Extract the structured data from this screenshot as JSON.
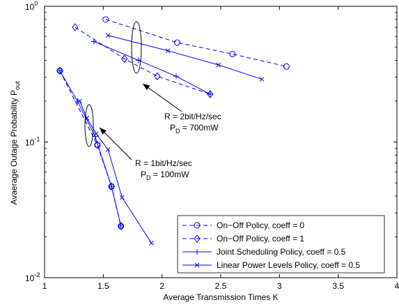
{
  "chart_data": {
    "type": "line",
    "title": "",
    "xlabel": "Average Transmission Times K",
    "ylabel": "Avaerage Outage Probability P",
    "ylabel_sub": "out",
    "xlim": [
      1,
      4
    ],
    "ylim": [
      0.01,
      1
    ],
    "yscale": "log",
    "grid": false,
    "legend_position": "bottom-right",
    "x_ticks": [
      "1",
      "1.5",
      "2",
      "2.5",
      "3",
      "3.5",
      "4"
    ],
    "x_tick_values": [
      1,
      1.5,
      2,
      2.5,
      3,
      3.5,
      4
    ],
    "y_ticks": [
      {
        "base": "10",
        "exp": "0",
        "value": 1
      },
      {
        "base": "10",
        "exp": "-1",
        "value": 0.1
      },
      {
        "base": "10",
        "exp": "-2",
        "value": 0.01
      }
    ],
    "color": "#0000ff",
    "series": [
      {
        "name": "On−Off Policy, coeff = 0",
        "line": "dashed",
        "marker": "circle",
        "group": "2bit",
        "x": [
          1.52,
          2.13,
          2.6,
          3.06
        ],
        "y": [
          0.8,
          0.54,
          0.445,
          0.36
        ]
      },
      {
        "name": "On−Off Policy, coeff = 1",
        "line": "dashed",
        "marker": "diamond",
        "group": "2bit",
        "x": [
          1.26,
          1.68,
          1.96,
          2.41
        ],
        "y": [
          0.7,
          0.41,
          0.305,
          0.225
        ]
      },
      {
        "name": "Joint Scheduling Policy, coeff = 0.5",
        "line": "solid",
        "marker": "plus",
        "group": "2bit",
        "x": [
          1.42,
          1.8,
          2.12,
          2.41
        ],
        "y": [
          0.55,
          0.4,
          0.305,
          0.225
        ]
      },
      {
        "name": "Linear Power Levels Policy, coeff = 0.5",
        "line": "solid",
        "marker": "x",
        "group": "2bit",
        "x": [
          1.54,
          2.05,
          2.48,
          2.85
        ],
        "y": [
          0.61,
          0.47,
          0.37,
          0.29
        ]
      },
      {
        "name": "On−Off Policy, coeff = 0",
        "line": "dashed",
        "marker": "circle",
        "group": "1bit",
        "x": [
          1.13,
          1.45,
          1.57,
          1.65
        ],
        "y": [
          0.335,
          0.095,
          0.047,
          0.024
        ]
      },
      {
        "name": "On−Off Policy, coeff = 1",
        "line": "dashed",
        "marker": "diamond",
        "group": "1bit",
        "x": [
          1.13,
          1.45,
          1.57,
          1.65
        ],
        "y": [
          0.335,
          0.095,
          0.047,
          0.024
        ]
      },
      {
        "name": "Joint Scheduling Policy, coeff = 0.5",
        "line": "solid",
        "marker": "plus",
        "group": "1bit",
        "x": [
          1.13,
          1.28,
          1.43,
          1.57,
          1.65
        ],
        "y": [
          0.335,
          0.2,
          0.11,
          0.047,
          0.024
        ]
      },
      {
        "name": "Linear Power Levels Policy, coeff = 0.5",
        "line": "solid",
        "marker": "x",
        "group": "1bit",
        "x": [
          1.3,
          1.36,
          1.44,
          1.54,
          1.66,
          1.91
        ],
        "y": [
          0.2,
          0.15,
          0.115,
          0.088,
          0.039,
          0.018
        ]
      }
    ],
    "annotations": [
      {
        "line1": "R = 2bit/Hz/sec",
        "line2_main": "P",
        "line2_sub": "D",
        "line2_rest": " = 700mW"
      },
      {
        "line1": "R = 1bit/Hz/sec",
        "line2_main": "P",
        "line2_sub": "D",
        "line2_rest": " = 100mW"
      }
    ]
  }
}
